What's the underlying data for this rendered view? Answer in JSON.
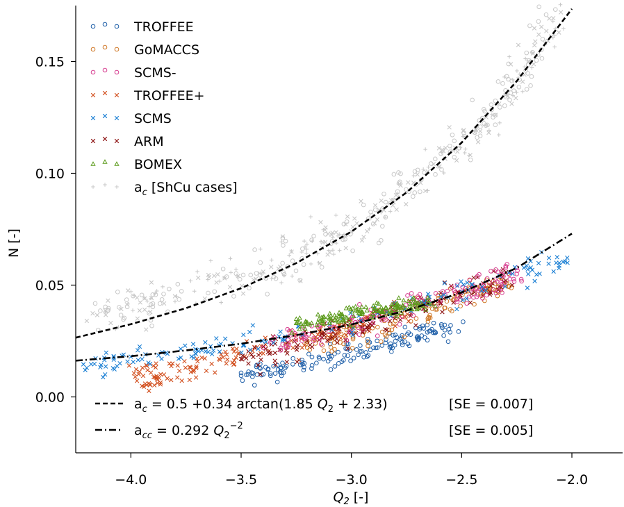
{
  "chart_data": {
    "type": "scatter",
    "xlabel": "Q₂ [-]",
    "ylabel": "N [-]",
    "xlim": [
      -4.25,
      -1.77
    ],
    "ylim": [
      -0.025,
      0.175
    ],
    "x_ticks": [
      -4.0,
      -3.5,
      -3.0,
      -2.5,
      -2.0
    ],
    "x_tick_labels": [
      "−4.0",
      "−3.5",
      "−3.0",
      "−2.5",
      "−2.0"
    ],
    "y_ticks": [
      0.0,
      0.05,
      0.1,
      0.15
    ],
    "y_tick_labels": [
      "0.00",
      "0.05",
      "0.10",
      "0.15"
    ],
    "grid": false,
    "legend_position": "top-left",
    "series": [
      {
        "name": "TROFFEE",
        "marker": "circle",
        "color": "#1f5fa8",
        "x_range": [
          -3.55,
          -2.5
        ],
        "y_start": 0.0095,
        "y_end": 0.033,
        "spread": 0.004,
        "sample": [
          [
            -3.5,
            0.0095
          ],
          [
            -3.3,
            0.013
          ],
          [
            -3.1,
            0.018
          ],
          [
            -2.9,
            0.022
          ],
          [
            -2.7,
            0.027
          ],
          [
            -2.55,
            0.032
          ]
        ]
      },
      {
        "name": "GoMACCS",
        "marker": "circle",
        "color": "#d07a2a",
        "x_range": [
          -3.2,
          -2.3
        ],
        "y_start": 0.022,
        "y_end": 0.05,
        "spread": 0.005,
        "sample": [
          [
            -3.2,
            0.022
          ],
          [
            -3.0,
            0.028
          ],
          [
            -2.8,
            0.034
          ],
          [
            -2.6,
            0.041
          ],
          [
            -2.4,
            0.047
          ],
          [
            -2.3,
            0.05
          ]
        ]
      },
      {
        "name": "SCMS-",
        "marker": "circle",
        "color": "#d63c8f",
        "x_range": [
          -3.4,
          -2.2
        ],
        "y_start": 0.022,
        "y_end": 0.055,
        "spread": 0.005,
        "sample": [
          [
            -3.4,
            0.022
          ],
          [
            -3.0,
            0.032
          ],
          [
            -2.7,
            0.042
          ],
          [
            -2.4,
            0.05
          ],
          [
            -2.25,
            0.055
          ]
        ]
      },
      {
        "name": "TROFFEE+",
        "marker": "x",
        "color": "#d24f1e",
        "x_range": [
          -4.0,
          -2.55
        ],
        "y_start": 0.009,
        "y_end": 0.045,
        "spread": 0.005,
        "sample": [
          [
            -3.98,
            0.009
          ],
          [
            -3.85,
            0.01
          ],
          [
            -3.6,
            0.017
          ],
          [
            -3.3,
            0.024
          ],
          [
            -3.0,
            0.031
          ],
          [
            -2.7,
            0.04
          ]
        ]
      },
      {
        "name": "SCMS",
        "marker": "x",
        "color": "#1a7fd4",
        "x_range": [
          -4.2,
          -2.0
        ],
        "y_start": 0.014,
        "y_end": 0.059,
        "spread": 0.004,
        "sample": [
          [
            -4.2,
            0.013
          ],
          [
            -4.0,
            0.018
          ],
          [
            -3.7,
            0.021
          ],
          [
            -3.3,
            0.027
          ],
          [
            -2.9,
            0.036
          ],
          [
            -2.5,
            0.047
          ],
          [
            -2.2,
            0.057
          ],
          [
            -2.02,
            0.06
          ]
        ]
      },
      {
        "name": "ARM",
        "marker": "x",
        "color": "#8c1010",
        "x_range": [
          -3.55,
          -2.2
        ],
        "y_start": 0.016,
        "y_end": 0.055,
        "spread": 0.005,
        "sample": [
          [
            -3.5,
            0.017
          ],
          [
            -3.2,
            0.025
          ],
          [
            -2.9,
            0.033
          ],
          [
            -2.6,
            0.043
          ],
          [
            -2.3,
            0.052
          ]
        ]
      },
      {
        "name": "BOMEX",
        "marker": "triangle",
        "color": "#5a9a1a",
        "x_range": [
          -3.25,
          -2.65
        ],
        "y_start": 0.033,
        "y_end": 0.042,
        "spread": 0.003,
        "sample": [
          [
            -3.25,
            0.033
          ],
          [
            -3.1,
            0.035
          ],
          [
            -2.95,
            0.038
          ],
          [
            -2.8,
            0.04
          ],
          [
            -2.65,
            0.042
          ]
        ]
      },
      {
        "name": "a_c [ShCu cases]",
        "marker": "plus",
        "color": "#c8c8c8",
        "x_range": [
          -4.2,
          -2.03
        ],
        "y_start": 0.03,
        "y_end": 0.172,
        "spread": 0.008,
        "sample": [
          [
            -4.2,
            0.034
          ],
          [
            -3.8,
            0.045
          ],
          [
            -3.4,
            0.056
          ],
          [
            -3.0,
            0.074
          ],
          [
            -2.6,
            0.103
          ],
          [
            -2.3,
            0.135
          ],
          [
            -2.05,
            0.172
          ]
        ]
      }
    ],
    "fit_lines": [
      {
        "name": "a_c",
        "style": "dashed",
        "formula": "a_c = 0.5 +0.34 arctan(1.85 Q2 + 2.33)",
        "se": "[SE = 0.007]",
        "x": [
          -4.25,
          -4.0,
          -3.75,
          -3.5,
          -3.25,
          -3.0,
          -2.75,
          -2.5,
          -2.25,
          -2.0
        ],
        "y": [
          0.0265,
          0.0325,
          0.0397,
          0.0486,
          0.0598,
          0.0739,
          0.0914,
          0.1137,
          0.1412,
          0.1735
        ]
      },
      {
        "name": "a_cc",
        "style": "dashdot",
        "formula": "a_cc = 0.292 Q2^-2",
        "se": "[SE = 0.005]",
        "x": [
          -4.25,
          -4.0,
          -3.75,
          -3.5,
          -3.25,
          -3.0,
          -2.75,
          -2.5,
          -2.25,
          -2.0
        ],
        "y": [
          0.0162,
          0.0182,
          0.0208,
          0.0238,
          0.0276,
          0.0324,
          0.0386,
          0.0467,
          0.0577,
          0.073
        ]
      }
    ]
  },
  "legend": {
    "items": [
      {
        "label": "TROFFEE"
      },
      {
        "label": "GoMACCS"
      },
      {
        "label": "SCMS-"
      },
      {
        "label": "TROFFEE+"
      },
      {
        "label": "SCMS"
      },
      {
        "label": "ARM"
      },
      {
        "label": "BOMEX"
      },
      {
        "label": "a",
        "sub": "c",
        "suffix": " [ShCu cases]"
      }
    ]
  },
  "equations": {
    "ac_prefix": "a",
    "ac_sub": "c",
    "ac_body": "  = 0.5 +0.34 arctan(1.85 ",
    "ac_q": "Q",
    "ac_qsub": "2",
    "ac_tail": " + 2.33)",
    "ac_se": "[SE = 0.007]",
    "acc_prefix": "a",
    "acc_sub": "cc",
    "acc_body": " = 0.292 ",
    "acc_q": "Q",
    "acc_qsub": "2",
    "acc_exp": "−2",
    "acc_se": "[SE = 0.005]"
  },
  "axes": {
    "xlabel_q": "Q",
    "xlabel_sub": "2",
    "xlabel_unit": " [-]",
    "ylabel": "N [-]"
  }
}
